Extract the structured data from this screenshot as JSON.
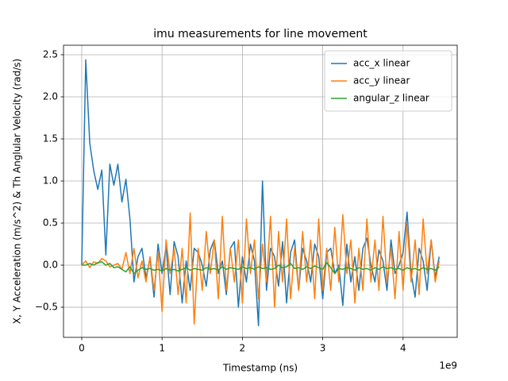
{
  "chart_data": {
    "type": "line",
    "title": "imu measurements for line movement",
    "xlabel": "Timestamp (ns)",
    "ylabel": "X, Y Acceleration (m/s^2) & Th Anglular Velocity (rad/s)",
    "x_offset_label": "1e9",
    "x": [
      0,
      0.05,
      0.1,
      0.15,
      0.2,
      0.25,
      0.3,
      0.35,
      0.4,
      0.45,
      0.5,
      0.55,
      0.6,
      0.65,
      0.7,
      0.75,
      0.8,
      0.85,
      0.9,
      0.95,
      1,
      1.05,
      1.1,
      1.15,
      1.2,
      1.25,
      1.3,
      1.35,
      1.4,
      1.45,
      1.5,
      1.55,
      1.6,
      1.65,
      1.7,
      1.75,
      1.8,
      1.85,
      1.9,
      1.95,
      2,
      2.05,
      2.1,
      2.15,
      2.2,
      2.25,
      2.3,
      2.35,
      2.4,
      2.45,
      2.5,
      2.55,
      2.6,
      2.65,
      2.7,
      2.75,
      2.8,
      2.85,
      2.9,
      2.95,
      3,
      3.05,
      3.1,
      3.15,
      3.2,
      3.25,
      3.3,
      3.35,
      3.4,
      3.45,
      3.5,
      3.55,
      3.6,
      3.65,
      3.7,
      3.75,
      3.8,
      3.85,
      3.9,
      3.95,
      4,
      4.05,
      4.1,
      4.15,
      4.2,
      4.25,
      4.3,
      4.35,
      4.4,
      4.45
    ],
    "series": [
      {
        "name": "acc_x linear",
        "color": "#1f77b4",
        "values": [
          0.0,
          2.44,
          1.45,
          1.12,
          0.9,
          1.13,
          0.12,
          1.2,
          0.95,
          1.2,
          0.75,
          1.02,
          0.55,
          -0.2,
          0.1,
          0.2,
          -0.15,
          0.08,
          -0.38,
          0.25,
          -0.1,
          0.22,
          -0.35,
          0.28,
          0.1,
          -0.45,
          0.05,
          -0.3,
          0.2,
          0.15,
          0.0,
          -0.25,
          0.18,
          0.3,
          -0.1,
          0.05,
          -0.35,
          0.2,
          0.28,
          -0.5,
          0.1,
          -0.2,
          0.25,
          0.05,
          -0.72,
          1.0,
          -0.3,
          0.2,
          0.1,
          -0.25,
          0.28,
          -0.45,
          0.15,
          0.3,
          -0.3,
          0.2,
          0.05,
          -0.2,
          0.25,
          0.1,
          -0.4,
          0.15,
          0.2,
          -0.1,
          0.0,
          -0.48,
          0.25,
          -0.2,
          0.1,
          -0.3,
          0.2,
          0.32,
          0.0,
          -0.2,
          0.18,
          0.05,
          -0.3,
          0.3,
          -0.1,
          0.0,
          0.15,
          0.63,
          -0.1,
          -0.38,
          0.2,
          0.05,
          -0.3,
          0.3,
          -0.15,
          0.1
        ]
      },
      {
        "name": "acc_y linear",
        "color": "#ff7f0e",
        "values": [
          0.0,
          0.05,
          -0.03,
          0.04,
          0.02,
          0.08,
          0.05,
          -0.02,
          0.0,
          0.02,
          -0.05,
          0.15,
          -0.1,
          0.2,
          -0.15,
          0.05,
          -0.2,
          0.1,
          -0.3,
          0.15,
          -0.55,
          0.3,
          -0.1,
          0.2,
          -0.35,
          0.2,
          -0.45,
          0.62,
          -0.7,
          0.2,
          -0.3,
          0.4,
          -0.1,
          0.3,
          -0.4,
          0.58,
          -0.3,
          0.2,
          -0.2,
          0.3,
          -0.45,
          0.55,
          -0.1,
          0.3,
          -0.4,
          0.25,
          -0.2,
          0.58,
          -0.5,
          0.4,
          -0.2,
          0.55,
          -0.4,
          0.2,
          -0.3,
          0.4,
          -0.2,
          0.3,
          -0.4,
          0.55,
          -0.3,
          0.2,
          -0.3,
          0.45,
          -0.2,
          0.6,
          -0.1,
          0.3,
          -0.45,
          0.2,
          -0.3,
          0.55,
          -0.2,
          0.3,
          -0.3,
          0.58,
          -0.2,
          0.2,
          -0.4,
          0.4,
          -0.3,
          0.5,
          -0.2,
          0.3,
          -0.35,
          0.55,
          -0.1,
          0.3,
          -0.2,
          0.05
        ]
      },
      {
        "name": "angular_z linear",
        "color": "#2ca02c",
        "values": [
          0.0,
          0.0,
          0.02,
          0.0,
          0.03,
          0.04,
          0.0,
          0.02,
          -0.03,
          -0.02,
          -0.05,
          -0.08,
          -0.02,
          -0.1,
          -0.06,
          -0.03,
          -0.05,
          -0.04,
          -0.06,
          -0.05,
          -0.07,
          -0.04,
          -0.06,
          -0.05,
          -0.07,
          -0.05,
          -0.03,
          -0.06,
          -0.04,
          -0.05,
          -0.06,
          -0.03,
          -0.05,
          -0.04,
          -0.06,
          -0.02,
          -0.05,
          -0.03,
          -0.04,
          -0.05,
          -0.02,
          -0.04,
          -0.03,
          -0.05,
          -0.02,
          -0.04,
          -0.03,
          -0.05,
          -0.04,
          0.0,
          -0.03,
          -0.02,
          0.02,
          -0.04,
          -0.03,
          -0.05,
          -0.02,
          -0.04,
          -0.01,
          -0.03,
          -0.05,
          0.03,
          -0.03,
          -0.1,
          -0.04,
          -0.05,
          -0.03,
          -0.04,
          -0.06,
          -0.03,
          -0.05,
          -0.04,
          -0.06,
          -0.03,
          -0.05,
          -0.02,
          -0.04,
          -0.03,
          -0.05,
          -0.04,
          -0.06,
          -0.03,
          -0.05,
          -0.04,
          -0.06,
          -0.03,
          -0.05,
          -0.04,
          -0.06,
          -0.02
        ]
      }
    ],
    "xlim": [
      -0.227,
      4.674
    ],
    "ylim": [
      -0.858,
      2.613
    ],
    "xticks": [
      0,
      1,
      2,
      3,
      4
    ],
    "yticks": [
      {
        "value": -0.5,
        "label": "−0.5"
      },
      {
        "value": 0,
        "label": "0.0"
      },
      0.5,
      {
        "value": 1,
        "label": "1.0"
      },
      1.5,
      {
        "value": 2,
        "label": "2.0"
      },
      2.5
    ],
    "grid": true,
    "legend": "upper right"
  }
}
